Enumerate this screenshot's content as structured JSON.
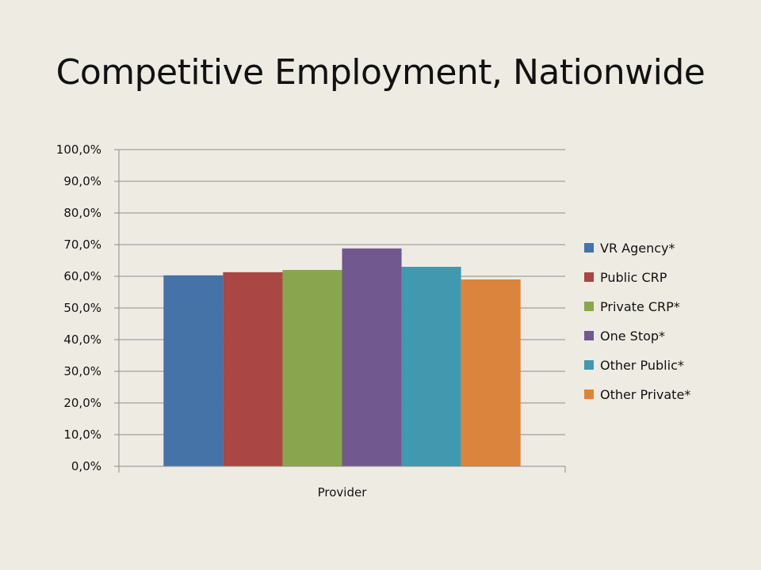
{
  "slide": {
    "title": "Competitive Employment, Nationwide"
  },
  "chart_data": {
    "type": "bar",
    "categories": [
      "Provider"
    ],
    "series": [
      {
        "name": "VR Agency*",
        "values": [
          60.3
        ],
        "color": "#4572a7"
      },
      {
        "name": "Public CRP",
        "values": [
          61.3
        ],
        "color": "#aa4643"
      },
      {
        "name": "Private CRP*",
        "values": [
          62.0
        ],
        "color": "#89a54e"
      },
      {
        "name": "One Stop*",
        "values": [
          68.8
        ],
        "color": "#71588f"
      },
      {
        "name": "Other Public*",
        "values": [
          63.0
        ],
        "color": "#4198af"
      },
      {
        "name": "Other Private*",
        "values": [
          59.0
        ],
        "color": "#db843d"
      }
    ],
    "ylim": [
      0,
      100
    ],
    "yticks": [
      "0,0%",
      "10,0%",
      "20,0%",
      "30,0%",
      "40,0%",
      "50,0%",
      "60,0%",
      "70,0%",
      "80,0%",
      "90,0%",
      "100,0%"
    ],
    "xlabel": "",
    "ylabel": "",
    "grid": true,
    "legend": "right"
  }
}
